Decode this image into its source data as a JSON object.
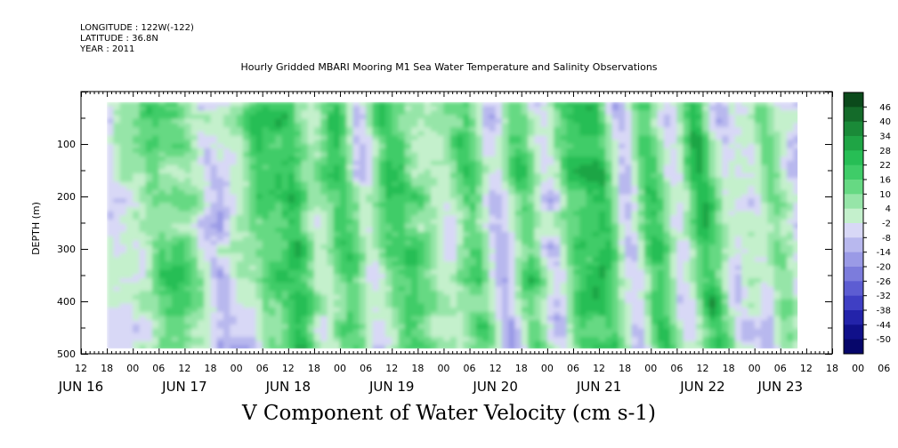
{
  "header": {
    "longitude": "LONGITUDE : 122W(-122)",
    "latitude": "LATITUDE : 36.8N",
    "year": "YEAR : 2011"
  },
  "chart_data": {
    "type": "heatmap",
    "title": "Hourly Gridded MBARI Mooring M1 Sea Water Temperature and Salinity Observations",
    "variable_title": "V Component of Water Velocity (cm s-1)",
    "ylabel": "DEPTH (m)",
    "ylim": [
      500,
      0
    ],
    "y_ticks": [
      100,
      200,
      300,
      400,
      500
    ],
    "x_range_hours": [
      0,
      174
    ],
    "x_hour_ticks": [
      "12",
      "18",
      "00",
      "06",
      "12",
      "18",
      "00",
      "06",
      "12",
      "18",
      "00",
      "06",
      "12",
      "18",
      "00",
      "06",
      "12",
      "18",
      "00",
      "06",
      "12",
      "18",
      "00",
      "06",
      "12",
      "18",
      "00",
      "06",
      "12",
      "18",
      "00",
      "06"
    ],
    "x_date_labels": [
      {
        "label": "JUN 16",
        "hour": 0
      },
      {
        "label": "JUN 17",
        "hour": 24
      },
      {
        "label": "JUN 18",
        "hour": 48
      },
      {
        "label": "JUN 19",
        "hour": 72
      },
      {
        "label": "JUN 20",
        "hour": 96
      },
      {
        "label": "JUN 21",
        "hour": 120
      },
      {
        "label": "JUN 22",
        "hour": 144
      },
      {
        "label": "JUN 23",
        "hour": 162
      }
    ],
    "data_extent": {
      "hour_start": 6,
      "hour_end": 166,
      "depth_top": 20,
      "depth_bottom": 490
    },
    "colorbar_levels": [
      46,
      40,
      34,
      28,
      22,
      16,
      10,
      4,
      -2,
      -8,
      -14,
      -20,
      -26,
      -32,
      -38,
      -44,
      -50
    ],
    "colorbar_colors": [
      "#0b4a1b",
      "#146b2a",
      "#1a8a38",
      "#1fa545",
      "#27be55",
      "#3fcc68",
      "#66d983",
      "#96e5a8",
      "#c4f0cc",
      "#d8d8f6",
      "#b8b8ee",
      "#9a9ae6",
      "#7c7cdc",
      "#5d5dd2",
      "#3f3fc4",
      "#2323aa",
      "#10108a",
      "#06066a"
    ],
    "contour_profile": [
      {
        "hour": 6,
        "v": -10
      },
      {
        "hour": 12,
        "v": -4
      },
      {
        "hour": 18,
        "v": 8
      },
      {
        "hour": 24,
        "v": 4
      },
      {
        "hour": 30,
        "v": -14
      },
      {
        "hour": 36,
        "v": -8
      },
      {
        "hour": 42,
        "v": 10
      },
      {
        "hour": 48,
        "v": 18
      },
      {
        "hour": 54,
        "v": -4
      },
      {
        "hour": 60,
        "v": 12
      },
      {
        "hour": 66,
        "v": -10
      },
      {
        "hour": 72,
        "v": 14
      },
      {
        "hour": 78,
        "v": 6
      },
      {
        "hour": 84,
        "v": -6
      },
      {
        "hour": 90,
        "v": 10
      },
      {
        "hour": 96,
        "v": -14
      },
      {
        "hour": 102,
        "v": 12
      },
      {
        "hour": 108,
        "v": -12
      },
      {
        "hour": 114,
        "v": 14
      },
      {
        "hour": 120,
        "v": 20
      },
      {
        "hour": 126,
        "v": -16
      },
      {
        "hour": 132,
        "v": 16
      },
      {
        "hour": 138,
        "v": -10
      },
      {
        "hour": 144,
        "v": 18
      },
      {
        "hour": 150,
        "v": -12
      },
      {
        "hour": 156,
        "v": -8
      },
      {
        "hour": 160,
        "v": 8
      },
      {
        "hour": 166,
        "v": -10
      }
    ]
  },
  "colors": {
    "frame": "#000000",
    "background": "#ffffff"
  }
}
